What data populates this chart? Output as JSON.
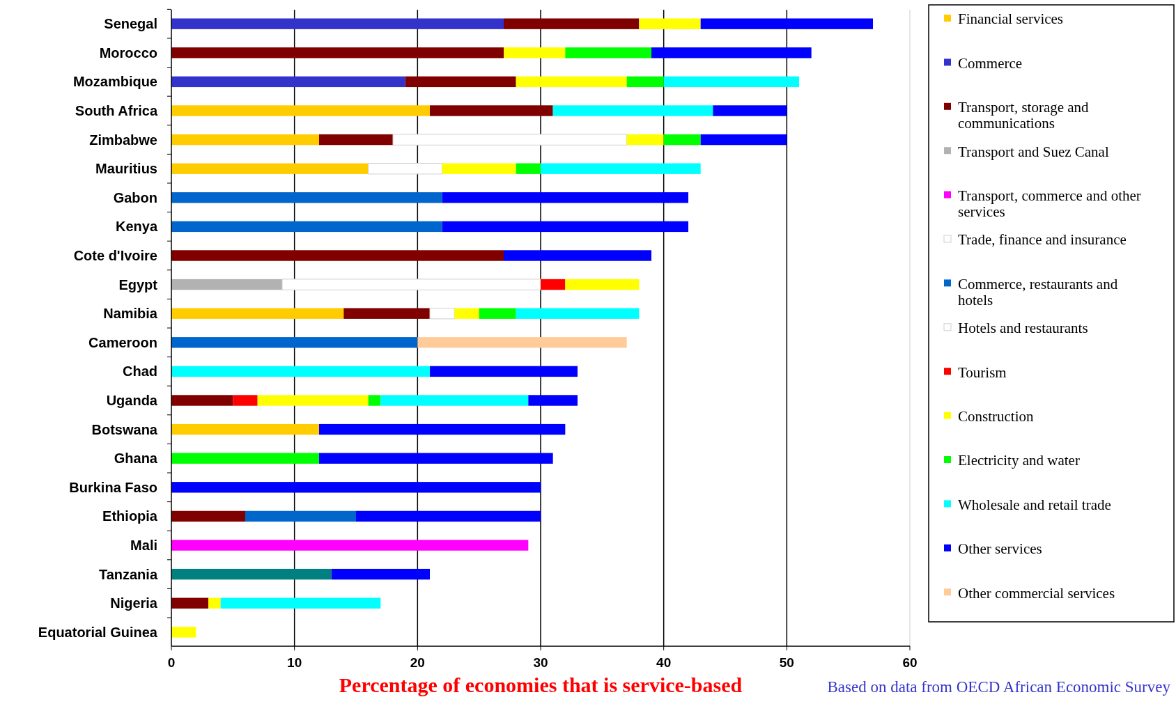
{
  "chart_data": {
    "type": "bar",
    "orientation": "horizontal",
    "stacked": true,
    "categories": [
      "Senegal",
      "Morocco",
      "Mozambique",
      "South Africa",
      "Zimbabwe",
      "Mauritius",
      "Gabon",
      "Kenya",
      "Cote d'Ivoire",
      "Egypt",
      "Namibia",
      "Cameroon",
      "Chad",
      "Uganda",
      "Botswana",
      "Ghana",
      "Burkina Faso",
      "Ethiopia",
      "Mali",
      "Tanzania",
      "Nigeria",
      "Equatorial Guinea"
    ],
    "series": [
      {
        "name": "Financial services",
        "color": "#ffcc00",
        "values": [
          null,
          null,
          null,
          21,
          12,
          16,
          null,
          null,
          null,
          null,
          14,
          null,
          null,
          null,
          12,
          null,
          null,
          null,
          null,
          null,
          null,
          null
        ]
      },
      {
        "name": "Commerce",
        "color": "#3333cc",
        "values": [
          27,
          null,
          19,
          null,
          null,
          null,
          null,
          null,
          null,
          null,
          null,
          null,
          null,
          null,
          null,
          null,
          null,
          null,
          null,
          null,
          null,
          null
        ]
      },
      {
        "name": "Transport, storage and communications",
        "color": "#800000",
        "values": [
          11,
          27,
          9,
          10,
          6,
          null,
          null,
          null,
          27,
          null,
          7,
          null,
          null,
          5,
          null,
          null,
          null,
          6,
          null,
          null,
          3,
          null
        ]
      },
      {
        "name": "Transport and Suez Canal",
        "color": "#b2b2b2",
        "values": [
          null,
          null,
          null,
          null,
          null,
          null,
          null,
          null,
          null,
          9,
          null,
          null,
          null,
          null,
          null,
          null,
          null,
          null,
          null,
          null,
          null,
          null
        ]
      },
      {
        "name": "Transport, commerce and other services",
        "color": "#ff00ff",
        "values": [
          null,
          null,
          null,
          null,
          null,
          null,
          null,
          null,
          null,
          null,
          null,
          null,
          null,
          null,
          null,
          null,
          null,
          null,
          29,
          null,
          null,
          null
        ]
      },
      {
        "name": "Trade, finance and insurance",
        "color": "#ffffff",
        "values": [
          null,
          null,
          null,
          null,
          19,
          null,
          null,
          null,
          null,
          21,
          2,
          null,
          null,
          null,
          null,
          null,
          null,
          null,
          null,
          null,
          null,
          null
        ]
      },
      {
        "name": "Commerce, restaurants and hotels",
        "color": "#0066cc",
        "values": [
          null,
          null,
          null,
          null,
          null,
          null,
          22,
          22,
          null,
          null,
          null,
          20,
          null,
          null,
          null,
          null,
          null,
          9,
          null,
          null,
          null,
          null
        ]
      },
      {
        "name": "Hotels and restaurants",
        "color": "#ffffff",
        "values": [
          null,
          null,
          null,
          null,
          null,
          6,
          null,
          null,
          null,
          null,
          null,
          null,
          null,
          null,
          null,
          null,
          null,
          null,
          null,
          null,
          null,
          null
        ]
      },
      {
        "name": "Tourism",
        "color": "#ff0000",
        "values": [
          null,
          null,
          null,
          null,
          null,
          null,
          null,
          null,
          null,
          2,
          null,
          null,
          null,
          2,
          null,
          null,
          null,
          null,
          null,
          null,
          null,
          null
        ]
      },
      {
        "name": "Construction",
        "color": "#ffff00",
        "values": [
          5,
          5,
          9,
          null,
          3,
          6,
          null,
          null,
          null,
          6,
          2,
          null,
          null,
          9,
          null,
          null,
          null,
          null,
          null,
          null,
          1,
          2
        ]
      },
      {
        "name": "Electricity and water",
        "color": "#00ff00",
        "values": [
          null,
          7,
          3,
          null,
          3,
          2,
          null,
          null,
          null,
          null,
          3,
          null,
          null,
          1,
          null,
          12,
          null,
          null,
          null,
          null,
          null,
          null
        ]
      },
      {
        "name": "Wholesale and retail trade",
        "color": "#00ffff",
        "values": [
          null,
          null,
          11,
          13,
          null,
          13,
          null,
          null,
          null,
          null,
          10,
          null,
          21,
          12,
          null,
          null,
          null,
          null,
          null,
          null,
          13,
          null
        ]
      },
      {
        "color": "#008080",
        "values": [
          null,
          null,
          null,
          null,
          null,
          null,
          null,
          null,
          null,
          null,
          null,
          null,
          null,
          null,
          null,
          null,
          null,
          null,
          null,
          13,
          null,
          null
        ]
      },
      {
        "name": "Other services",
        "color": "#0000ff",
        "values": [
          14,
          13,
          null,
          6,
          7,
          null,
          20,
          20,
          12,
          null,
          null,
          null,
          12,
          4,
          20,
          19,
          30,
          15,
          null,
          8,
          null,
          null
        ]
      },
      {
        "name": "Other commercial services",
        "color": "#ffcc99",
        "values": [
          null,
          null,
          null,
          null,
          null,
          null,
          null,
          null,
          null,
          null,
          null,
          17,
          null,
          null,
          null,
          null,
          null,
          null,
          null,
          null,
          null,
          null
        ]
      }
    ],
    "xlim": [
      0,
      60
    ],
    "xticks": [
      0,
      10,
      20,
      30,
      40,
      50,
      60
    ],
    "grid": "x",
    "legend": "right",
    "xlabel": "Percentage of economies that is service-based",
    "annotations": [
      "Based on data from OECD African Economic Survey"
    ]
  }
}
